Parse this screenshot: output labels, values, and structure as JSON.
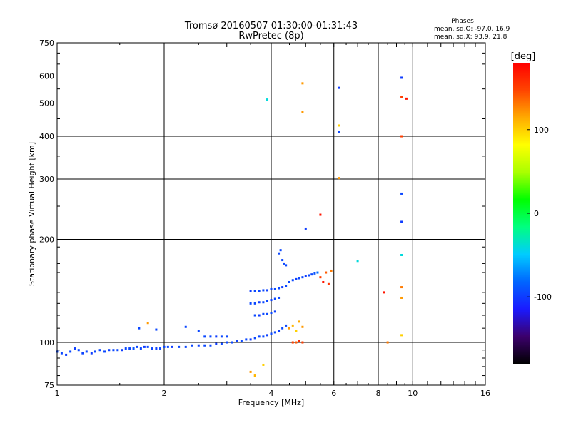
{
  "chart_data": {
    "type": "scatter",
    "title": "Tromsø 20160507 01:30:00-01:31:43",
    "subtitle": "RwPretec (8p)",
    "stats": {
      "heading": "Phases",
      "line_o": "mean, sd,O: -97.0, 16.9",
      "line_x": "mean, sd,X:  93.9, 21.8"
    },
    "xlabel": "Frequency [MHz]",
    "ylabel": "Stationary phase Virtual Height [km]",
    "xscale": "log",
    "yscale": "log",
    "xlim": [
      1,
      16
    ],
    "ylim": [
      75,
      750
    ],
    "xticks": [
      1,
      2,
      4,
      6,
      8,
      10,
      16
    ],
    "xtick_labels": [
      "1",
      "2",
      "4",
      "6",
      "8",
      "10",
      "16"
    ],
    "yticks": [
      75,
      100,
      200,
      300,
      400,
      500,
      600,
      750
    ],
    "ytick_labels": [
      "75",
      "100",
      "200",
      "300",
      "400",
      "500",
      "600",
      "750"
    ],
    "grid": true,
    "colorbar": {
      "label": "[deg]",
      "range": [
        -180,
        180
      ],
      "ticks": [
        100,
        0,
        -100
      ],
      "tick_labels": [
        "100",
        "0",
        "-100"
      ],
      "stops": [
        "#000000",
        "#3c006c",
        "#1a1aff",
        "#0066ff",
        "#00ccff",
        "#00ff80",
        "#00ff00",
        "#aaff00",
        "#ffff00",
        "#ffaa00",
        "#ff4400",
        "#ff0000"
      ]
    },
    "points": [
      [
        1.0,
        94,
        -95
      ],
      [
        1.03,
        93,
        -95
      ],
      [
        1.06,
        92,
        -100
      ],
      [
        1.09,
        94,
        -95
      ],
      [
        1.12,
        96,
        -98
      ],
      [
        1.15,
        95,
        -95
      ],
      [
        1.18,
        93,
        -97
      ],
      [
        1.21,
        94,
        -95
      ],
      [
        1.25,
        93,
        -100
      ],
      [
        1.28,
        94,
        -95
      ],
      [
        1.32,
        95,
        -95
      ],
      [
        1.36,
        94,
        -95
      ],
      [
        1.4,
        95,
        -98
      ],
      [
        1.44,
        95,
        -95
      ],
      [
        1.48,
        95,
        -95
      ],
      [
        1.52,
        95,
        -100
      ],
      [
        1.56,
        96,
        -95
      ],
      [
        1.6,
        96,
        -95
      ],
      [
        1.64,
        96,
        -90
      ],
      [
        1.68,
        97,
        -95
      ],
      [
        1.72,
        96,
        -95
      ],
      [
        1.76,
        97,
        -100
      ],
      [
        1.8,
        97,
        -95
      ],
      [
        1.85,
        96,
        -95
      ],
      [
        1.9,
        96,
        -98
      ],
      [
        1.95,
        96,
        -95
      ],
      [
        2.0,
        97,
        -95
      ],
      [
        2.05,
        97,
        -95
      ],
      [
        2.1,
        97,
        -100
      ],
      [
        2.2,
        97,
        -95
      ],
      [
        2.3,
        97,
        -95
      ],
      [
        2.4,
        98,
        -95
      ],
      [
        2.5,
        98,
        -98
      ],
      [
        2.6,
        98,
        -95
      ],
      [
        2.7,
        98,
        -95
      ],
      [
        2.8,
        99,
        -100
      ],
      [
        2.9,
        99,
        -95
      ],
      [
        3.0,
        100,
        -95
      ],
      [
        3.1,
        100,
        -95
      ],
      [
        3.2,
        101,
        -98
      ],
      [
        3.3,
        101,
        -95
      ],
      [
        3.4,
        102,
        -95
      ],
      [
        3.5,
        102,
        -100
      ],
      [
        3.6,
        103,
        -95
      ],
      [
        3.7,
        104,
        -95
      ],
      [
        3.8,
        104,
        -95
      ],
      [
        3.9,
        105,
        -98
      ],
      [
        4.0,
        106,
        -95
      ],
      [
        4.1,
        107,
        -95
      ],
      [
        4.2,
        108,
        -100
      ],
      [
        4.3,
        110,
        -95
      ],
      [
        4.4,
        112,
        -95
      ],
      [
        2.6,
        104,
        -95
      ],
      [
        2.7,
        104,
        -95
      ],
      [
        2.8,
        104,
        -100
      ],
      [
        2.9,
        104,
        -95
      ],
      [
        3.0,
        104,
        -95
      ],
      [
        1.8,
        114,
        120
      ],
      [
        1.7,
        110,
        -95
      ],
      [
        1.9,
        109,
        -95
      ],
      [
        2.3,
        111,
        -95
      ],
      [
        2.5,
        108,
        -95
      ],
      [
        3.5,
        130,
        -95
      ],
      [
        3.6,
        130,
        -95
      ],
      [
        3.7,
        131,
        -100
      ],
      [
        3.8,
        131,
        -95
      ],
      [
        3.9,
        132,
        -95
      ],
      [
        4.0,
        133,
        -98
      ],
      [
        4.1,
        134,
        -95
      ],
      [
        4.2,
        135,
        -95
      ],
      [
        3.6,
        120,
        -95
      ],
      [
        3.7,
        120,
        -100
      ],
      [
        3.8,
        121,
        -95
      ],
      [
        3.9,
        121,
        -95
      ],
      [
        4.0,
        122,
        -95
      ],
      [
        4.1,
        123,
        -98
      ],
      [
        3.5,
        141,
        -100
      ],
      [
        3.6,
        141,
        -95
      ],
      [
        3.7,
        141,
        -95
      ],
      [
        3.8,
        142,
        -95
      ],
      [
        3.9,
        142,
        -98
      ],
      [
        4.0,
        143,
        -95
      ],
      [
        4.1,
        143,
        -95
      ],
      [
        4.2,
        144,
        -95
      ],
      [
        4.3,
        145,
        -100
      ],
      [
        4.4,
        146,
        -95
      ],
      [
        4.5,
        150,
        -95
      ],
      [
        4.6,
        152,
        -95
      ],
      [
        4.7,
        153,
        -98
      ],
      [
        4.8,
        154,
        -95
      ],
      [
        4.9,
        155,
        -95
      ],
      [
        5.0,
        156,
        -100
      ],
      [
        5.1,
        157,
        -95
      ],
      [
        5.2,
        158,
        -95
      ],
      [
        5.3,
        159,
        -90
      ],
      [
        5.4,
        160,
        -80
      ],
      [
        4.2,
        182,
        -95
      ],
      [
        4.25,
        186,
        -95
      ],
      [
        4.3,
        174,
        -95
      ],
      [
        4.35,
        170,
        -95
      ],
      [
        4.4,
        168,
        -95
      ],
      [
        4.5,
        110,
        120
      ],
      [
        4.6,
        112,
        110
      ],
      [
        4.7,
        108,
        100
      ],
      [
        4.8,
        115,
        115
      ],
      [
        4.9,
        111,
        120
      ],
      [
        4.6,
        100,
        150
      ],
      [
        4.7,
        100,
        140
      ],
      [
        4.8,
        101,
        160
      ],
      [
        4.9,
        100,
        150
      ],
      [
        5.5,
        155,
        150
      ],
      [
        5.6,
        150,
        170
      ],
      [
        5.7,
        160,
        140
      ],
      [
        5.8,
        148,
        155
      ],
      [
        5.9,
        162,
        130
      ],
      [
        3.5,
        82,
        120
      ],
      [
        3.6,
        80,
        110
      ],
      [
        3.8,
        86,
        100
      ],
      [
        3.9,
        512,
        -40
      ],
      [
        4.9,
        571,
        120
      ],
      [
        4.9,
        470,
        120
      ],
      [
        5.5,
        236,
        170
      ],
      [
        5.0,
        215,
        -100
      ],
      [
        6.2,
        554,
        -100
      ],
      [
        6.2,
        430,
        100
      ],
      [
        6.2,
        412,
        -95
      ],
      [
        6.2,
        302,
        120
      ],
      [
        7.0,
        173,
        -40
      ],
      [
        8.3,
        140,
        170
      ],
      [
        8.5,
        100,
        130
      ],
      [
        9.3,
        593,
        -100
      ],
      [
        9.3,
        520,
        150
      ],
      [
        9.6,
        515,
        170
      ],
      [
        9.3,
        400,
        150
      ],
      [
        9.3,
        272,
        -95
      ],
      [
        9.3,
        225,
        -100
      ],
      [
        9.3,
        180,
        -40
      ],
      [
        9.3,
        145,
        130
      ],
      [
        9.3,
        135,
        120
      ],
      [
        9.3,
        105,
        100
      ]
    ]
  }
}
